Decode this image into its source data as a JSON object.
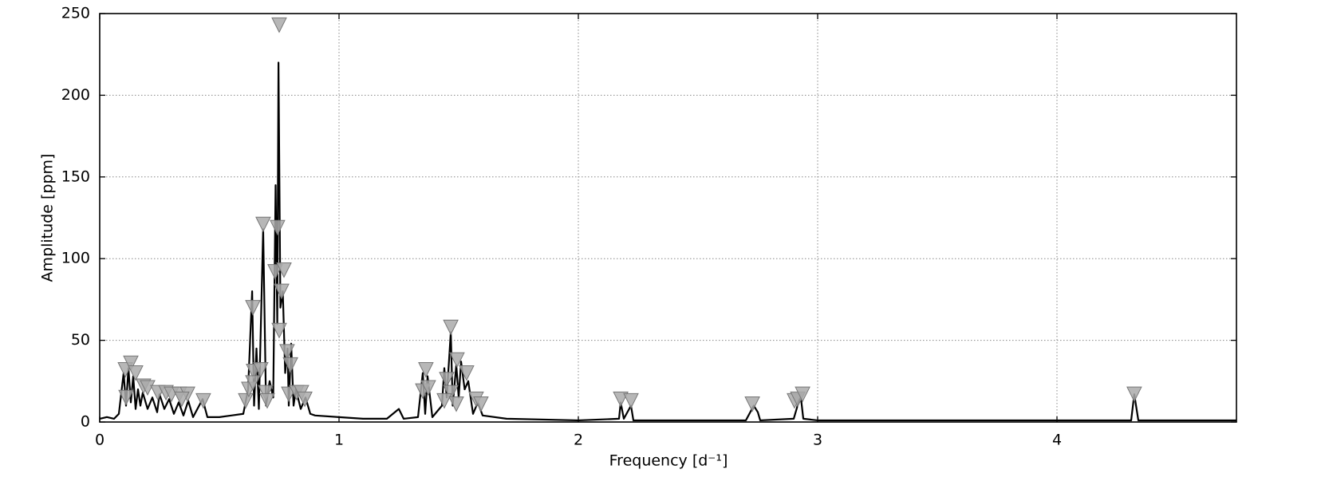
{
  "chart_data": {
    "type": "line",
    "xlabel": "Frequency [d⁻¹]",
    "ylabel": "Amplitude [ppm]",
    "xlim": [
      0,
      4.75
    ],
    "xticks": [
      0,
      1,
      2,
      3,
      4
    ],
    "ylim": [
      0,
      250
    ],
    "yticks": [
      0,
      50,
      100,
      150,
      200,
      250
    ],
    "grid": true,
    "series": [
      {
        "kind": "line",
        "color": "#000000",
        "x": [
          0,
          0.03,
          0.06,
          0.08,
          0.1,
          0.11,
          0.12,
          0.13,
          0.14,
          0.15,
          0.16,
          0.17,
          0.18,
          0.2,
          0.22,
          0.24,
          0.25,
          0.27,
          0.29,
          0.31,
          0.33,
          0.35,
          0.37,
          0.39,
          0.43,
          0.45,
          0.5,
          0.55,
          0.6,
          0.62,
          0.637,
          0.645,
          0.655,
          0.665,
          0.683,
          0.695,
          0.71,
          0.725,
          0.735,
          0.742,
          0.747,
          0.755,
          0.765,
          0.775,
          0.785,
          0.79,
          0.8,
          0.81,
          0.82,
          0.84,
          0.86,
          0.88,
          0.9,
          1.0,
          1.1,
          1.2,
          1.25,
          1.27,
          1.33,
          1.35,
          1.36,
          1.37,
          1.39,
          1.43,
          1.44,
          1.45,
          1.467,
          1.475,
          1.49,
          1.5,
          1.51,
          1.525,
          1.54,
          1.56,
          1.58,
          1.6,
          1.7,
          2.0,
          2.17,
          2.177,
          2.19,
          2.22,
          2.23,
          2.5,
          2.7,
          2.733,
          2.75,
          2.76,
          2.9,
          2.92,
          2.93,
          2.94,
          3.0,
          3.5,
          4.0,
          4.31,
          4.323,
          4.34,
          4.75
        ],
        "values": [
          2,
          3,
          2,
          5,
          30,
          10,
          33,
          12,
          28,
          8,
          20,
          10,
          18,
          8,
          15,
          6,
          17,
          8,
          14,
          5,
          12,
          4,
          13,
          3,
          14,
          3,
          3,
          4,
          5,
          20,
          80,
          10,
          45,
          8,
          118,
          10,
          25,
          15,
          145,
          60,
          220,
          70,
          80,
          30,
          45,
          10,
          48,
          10,
          20,
          8,
          15,
          5,
          4,
          3,
          2,
          2,
          8,
          2,
          3,
          30,
          5,
          28,
          3,
          10,
          33,
          15,
          55,
          10,
          35,
          15,
          37,
          20,
          25,
          5,
          12,
          4,
          2,
          1,
          2,
          12,
          2,
          10,
          1,
          1,
          1,
          10,
          6,
          1,
          2,
          12,
          15,
          2,
          1,
          1,
          1,
          1,
          17,
          1,
          1
        ]
      },
      {
        "kind": "markers",
        "color": "#aaaaaa",
        "x": [
          0.75,
          0.683,
          0.743,
          0.733,
          0.77,
          0.64,
          0.76,
          0.75,
          0.783,
          0.797,
          1.467,
          1.363,
          1.35,
          1.373,
          1.493,
          1.533,
          1.45,
          1.467,
          1.44,
          1.49,
          1.573,
          1.593,
          0.107,
          0.13,
          0.15,
          0.11,
          0.183,
          0.2,
          0.243,
          0.277,
          0.3,
          0.333,
          0.367,
          0.343,
          0.433,
          0.61,
          0.623,
          0.643,
          0.673,
          0.64,
          0.693,
          0.7,
          0.79,
          0.823,
          0.843,
          0.857,
          2.177,
          2.22,
          2.727,
          2.903,
          2.917,
          2.937,
          4.323
        ],
        "values": [
          243,
          121,
          119,
          92,
          93,
          70,
          80,
          56,
          43,
          35,
          58,
          32,
          19,
          21,
          38,
          30,
          26,
          18,
          13,
          11,
          14,
          11,
          32,
          36,
          30,
          15,
          22,
          21,
          18,
          18,
          17,
          17,
          17,
          14,
          13,
          13,
          20,
          31,
          32,
          24,
          18,
          13,
          17,
          18,
          18,
          14,
          14,
          13,
          11,
          13,
          14,
          17,
          17
        ]
      }
    ]
  }
}
